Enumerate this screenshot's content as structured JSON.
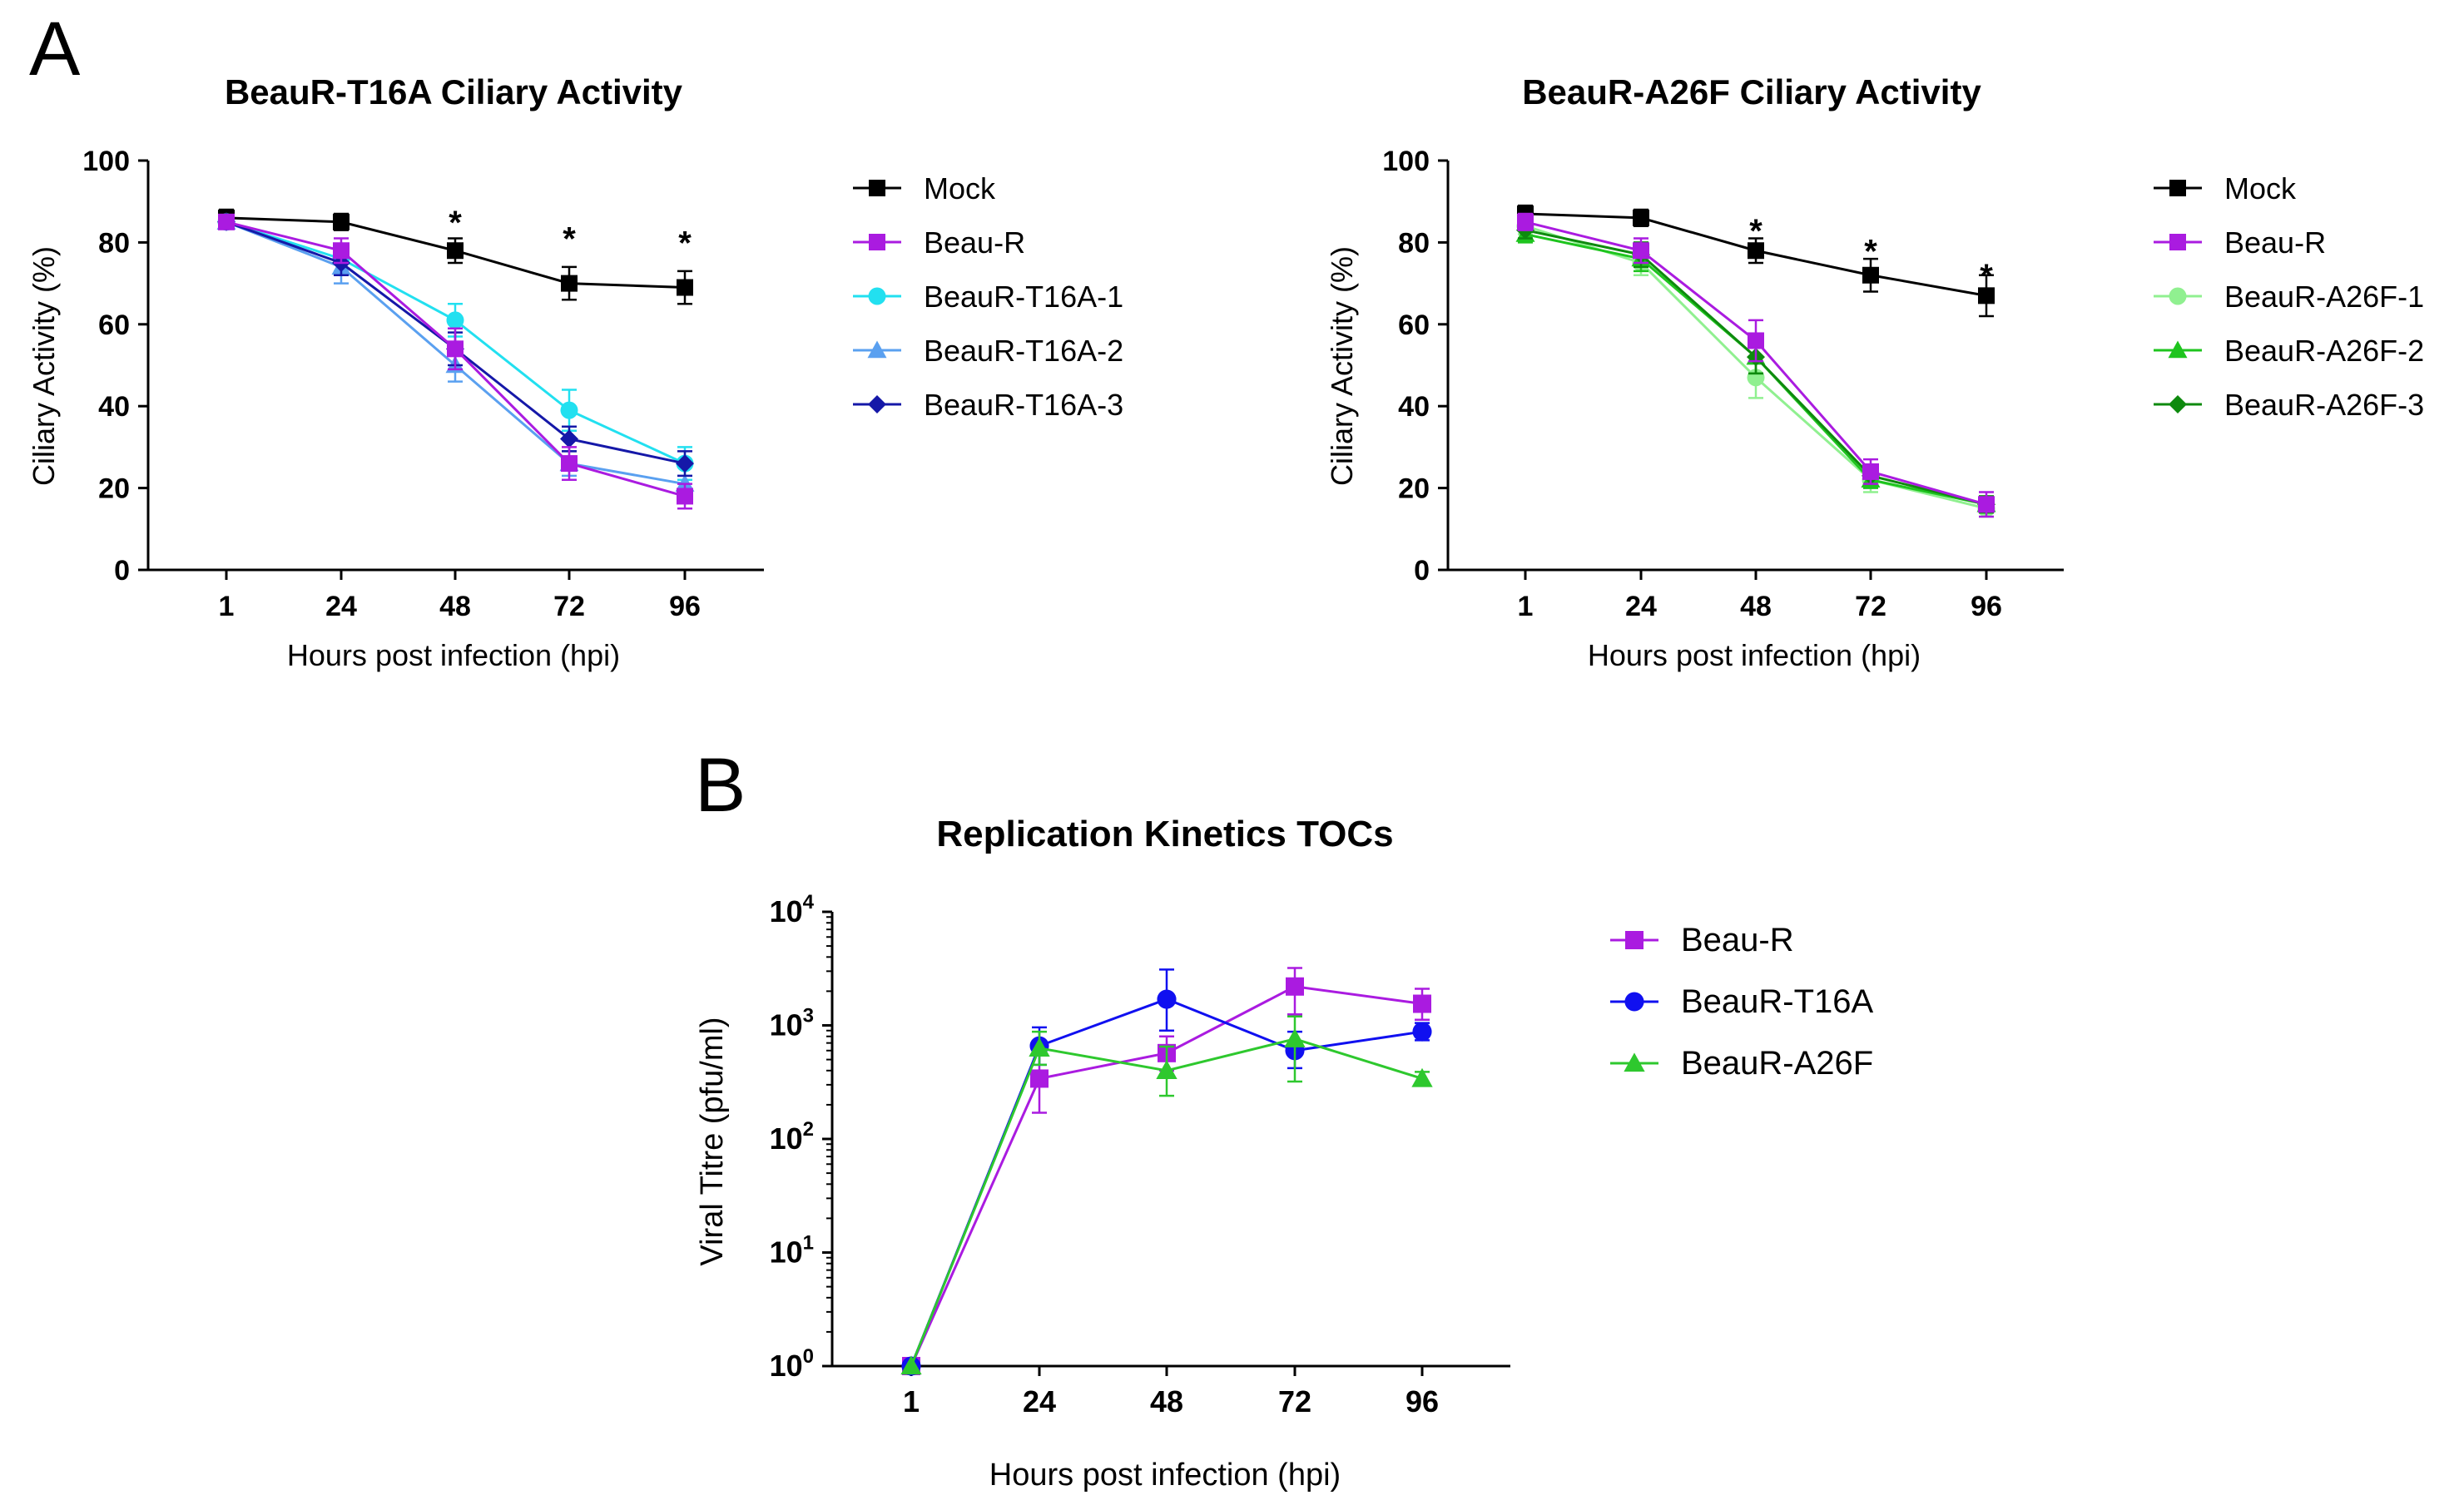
{
  "panels": {
    "a_label": "A",
    "b_label": "B"
  },
  "chart_data": [
    {
      "type": "line",
      "title": "BeauR-T16A Ciliary Activity",
      "xlabel": "Hours post infection (hpi)",
      "ylabel": "Ciliary Activity (%)",
      "categories": [
        "1",
        "24",
        "48",
        "72",
        "96"
      ],
      "yticks": [
        "0",
        "20",
        "40",
        "60",
        "80",
        "100"
      ],
      "ylim": [
        0,
        100
      ],
      "significance": [
        {
          "category": "48",
          "label": "*",
          "value": 87
        },
        {
          "category": "72",
          "label": "*",
          "value": 83
        },
        {
          "category": "96",
          "label": "*",
          "value": 82
        }
      ],
      "series": [
        {
          "name": "Mock",
          "color": "#000000",
          "marker": "square",
          "values": [
            86,
            85,
            78,
            70,
            69
          ],
          "errors": [
            2,
            2,
            3,
            4,
            4
          ]
        },
        {
          "name": "Beau-R",
          "color": "#aa1be0",
          "marker": "square",
          "values": [
            85,
            78,
            54,
            26,
            18
          ],
          "errors": [
            1,
            3,
            5,
            4,
            3
          ]
        },
        {
          "name": "BeauR-T16A-1",
          "color": "#22e0f0",
          "marker": "circle",
          "values": [
            85,
            76,
            61,
            39,
            26
          ],
          "errors": [
            1,
            3,
            4,
            5,
            4
          ]
        },
        {
          "name": "BeauR-T16A-2",
          "color": "#5aa0f0",
          "marker": "triangle",
          "values": [
            85,
            74,
            50,
            26,
            21
          ],
          "errors": [
            1,
            4,
            4,
            3,
            2
          ]
        },
        {
          "name": "BeauR-T16A-3",
          "color": "#1518a8",
          "marker": "diamond",
          "values": [
            85,
            75,
            54,
            32,
            26
          ],
          "errors": [
            1,
            3,
            4,
            3,
            3
          ]
        }
      ]
    },
    {
      "type": "line",
      "title": "BeauR-A26F Ciliary Activity",
      "xlabel": "Hours post infection (hpi)",
      "ylabel": "Ciliary Activity (%)",
      "categories": [
        "1",
        "24",
        "48",
        "72",
        "96"
      ],
      "yticks": [
        "0",
        "20",
        "40",
        "60",
        "80",
        "100"
      ],
      "ylim": [
        0,
        100
      ],
      "significance": [
        {
          "category": "48",
          "label": "*",
          "value": 85
        },
        {
          "category": "72",
          "label": "*",
          "value": 80
        },
        {
          "category": "96",
          "label": "*",
          "value": 74
        }
      ],
      "series": [
        {
          "name": "Mock",
          "color": "#000000",
          "marker": "square",
          "values": [
            87,
            86,
            78,
            72,
            67
          ],
          "errors": [
            2,
            2,
            3,
            4,
            5
          ]
        },
        {
          "name": "Beau-R",
          "color": "#aa1be0",
          "marker": "square",
          "values": [
            85,
            78,
            56,
            24,
            16
          ],
          "errors": [
            2,
            3,
            5,
            3,
            3
          ]
        },
        {
          "name": "BeauR-A26F-1",
          "color": "#90f090",
          "marker": "circle",
          "values": [
            84,
            75,
            47,
            22,
            15
          ],
          "errors": [
            2,
            3,
            5,
            3,
            2
          ]
        },
        {
          "name": "BeauR-A26F-2",
          "color": "#1ec41e",
          "marker": "triangle",
          "values": [
            82,
            76,
            52,
            22,
            16
          ],
          "errors": [
            2,
            3,
            4,
            2,
            2
          ]
        },
        {
          "name": "BeauR-A26F-3",
          "color": "#0e8a0e",
          "marker": "diamond",
          "values": [
            83,
            77,
            52,
            23,
            16
          ],
          "errors": [
            2,
            3,
            4,
            2,
            2
          ]
        }
      ]
    },
    {
      "type": "line",
      "title": "Replication Kinetics TOCs",
      "xlabel": "Hours post infection (hpi)",
      "ylabel": "Viral Titre (pfu/ml)",
      "yscale": "log",
      "categories": [
        "1",
        "24",
        "48",
        "72",
        "96"
      ],
      "yticks": [
        {
          "base": "10",
          "exp": "0"
        },
        {
          "base": "10",
          "exp": "1"
        },
        {
          "base": "10",
          "exp": "2"
        },
        {
          "base": "10",
          "exp": "3"
        },
        {
          "base": "10",
          "exp": "4"
        }
      ],
      "ylim": [
        1,
        10000
      ],
      "series": [
        {
          "name": "Beau-R",
          "color": "#aa1be0",
          "marker": "square",
          "values": [
            1,
            340,
            570,
            2200,
            1550
          ],
          "errors_low": [
            1,
            170,
            400,
            1250,
            1120
          ],
          "errors_high": [
            1,
            650,
            800,
            3200,
            2100
          ]
        },
        {
          "name": "BeauR-T16A",
          "color": "#1010f0",
          "marker": "circle",
          "values": [
            1,
            660,
            1700,
            600,
            880
          ],
          "errors_low": [
            1,
            450,
            900,
            420,
            740
          ],
          "errors_high": [
            1,
            960,
            3100,
            880,
            1050
          ]
        },
        {
          "name": "BeauR-A26F",
          "color": "#2ec82e",
          "marker": "triangle",
          "values": [
            1,
            630,
            400,
            760,
            340
          ],
          "errors_low": [
            1,
            450,
            240,
            320,
            300
          ],
          "errors_high": [
            1,
            880,
            650,
            1200,
            390
          ]
        }
      ]
    }
  ]
}
